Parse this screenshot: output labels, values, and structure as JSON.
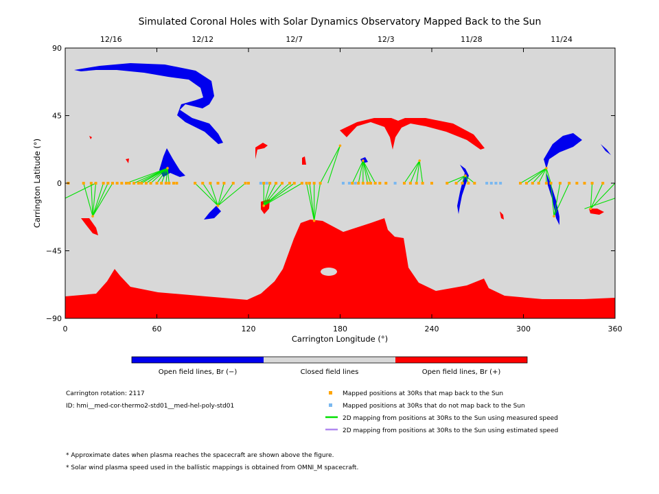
{
  "chart_data": {
    "type": "map",
    "title": "Simulated Coronal Holes with Solar Dynamics Observatory Mapped Back to the Sun",
    "xlabel": "Carrington Longitude (°)",
    "ylabel": "Carrington Latitude (°)",
    "xlim": [
      0,
      360
    ],
    "ylim": [
      -90,
      90
    ],
    "x_ticks": [
      "0",
      "60",
      "120",
      "180",
      "240",
      "300",
      "360"
    ],
    "x_tick_values": [
      0,
      60,
      120,
      180,
      240,
      300,
      360
    ],
    "y_ticks": [
      "90",
      "45",
      "0",
      "−45",
      "−90"
    ],
    "y_tick_values": [
      90,
      45,
      0,
      -45,
      -90
    ],
    "top_axis": {
      "labels": [
        "12/16",
        "12/12",
        "12/7",
        "12/3",
        "11/28",
        "11/24"
      ],
      "longitudes": [
        30,
        90,
        150,
        210,
        266,
        325
      ]
    },
    "colors": {
      "closed": "#d8d8d8",
      "open_negative": "#0000ee",
      "open_positive": "#ff0000",
      "mapped": "#ffa500",
      "unmapped": "#7ab8f0",
      "measured_line": "#00e000",
      "estimated_line": "#b088f0"
    },
    "colorbar_labels": [
      "Open field lines, Br (−)",
      "Closed field lines",
      "Open field lines, Br (+)"
    ],
    "mapped_longitudes": [
      2,
      12,
      17,
      20,
      25,
      28,
      31,
      34,
      37,
      40,
      42,
      45,
      48,
      50,
      53,
      56,
      60,
      63,
      66,
      68,
      71,
      73,
      85,
      90,
      95,
      100,
      104,
      110,
      118,
      120,
      130,
      134,
      138,
      142,
      147,
      150,
      155,
      158,
      160,
      163,
      167,
      188,
      192,
      195,
      198,
      200,
      203,
      206,
      210,
      222,
      226,
      230,
      234,
      240,
      250,
      256,
      260,
      264,
      268,
      298,
      302,
      306,
      310,
      315,
      318,
      324,
      330,
      335,
      340,
      345,
      352
    ],
    "unmapped_longitudes": [
      128,
      132,
      182,
      186,
      190,
      216,
      276,
      279,
      282,
      285
    ],
    "footpoints": [
      {
        "lon": 67,
        "lat": 10
      },
      {
        "lon": 100,
        "lat": -15
      },
      {
        "lon": 130,
        "lat": -15
      },
      {
        "lon": 163,
        "lat": -25
      },
      {
        "lon": 195,
        "lat": 15
      },
      {
        "lon": 232,
        "lat": 15
      },
      {
        "lon": 262,
        "lat": 5
      },
      {
        "lon": 315,
        "lat": 10
      },
      {
        "lon": 18,
        "lat": -22
      },
      {
        "lon": 180,
        "lat": 25
      },
      {
        "lon": 320,
        "lat": -22
      },
      {
        "lon": 344,
        "lat": -17
      }
    ],
    "connections": [
      {
        "foot": 0,
        "from": [
          40,
          45,
          48,
          50,
          53,
          56,
          60,
          63,
          66,
          68
        ]
      },
      {
        "foot": 1,
        "from": [
          85,
          90,
          95,
          104,
          110,
          118
        ]
      },
      {
        "foot": 2,
        "from": [
          130,
          134,
          138,
          142,
          147,
          150,
          155
        ]
      },
      {
        "foot": 3,
        "from": [
          158,
          160,
          163,
          167
        ]
      },
      {
        "foot": 4,
        "from": [
          188,
          192,
          195,
          198,
          200,
          203
        ]
      },
      {
        "foot": 5,
        "from": [
          222,
          226,
          230,
          234
        ]
      },
      {
        "foot": 6,
        "from": [
          250,
          256,
          260,
          264,
          268
        ]
      },
      {
        "foot": 7,
        "from": [
          298,
          302,
          306,
          310,
          315,
          318
        ]
      },
      {
        "foot": 8,
        "from": [
          12,
          17,
          20,
          25,
          28,
          31
        ]
      },
      {
        "foot": 9,
        "from": [
          167,
          172
        ]
      },
      {
        "foot": 10,
        "from": [
          318,
          324,
          330
        ]
      },
      {
        "foot": 11,
        "from": [
          345,
          352,
          360
        ]
      }
    ],
    "edge_lines": [
      {
        "from": [
          0,
          -10
        ],
        "to": [
          20,
          0
        ]
      },
      {
        "from": [
          360,
          -10
        ],
        "to": [
          340,
          -17
        ]
      }
    ]
  },
  "info": {
    "rotation": "Carrington rotation: 2117",
    "id": "ID: hmi__med-cor-thermo2-std01__med-hel-poly-std01"
  },
  "legend": {
    "mapped": "Mapped positions at 30Rs that map back to the Sun",
    "unmapped": "Mapped positions at 30Rs that do not map back to the Sun",
    "measured": "2D mapping from positions at 30Rs to the Sun using measured speed",
    "estimated": "2D mapping from positions at 30Rs to the Sun using estimated speed"
  },
  "notes": [
    "* Approximate dates when plasma reaches the spacecraft are shown above the figure.",
    "* Solar wind plasma speed used in the ballistic mappings is obtained from OMNI_M spacecraft."
  ]
}
